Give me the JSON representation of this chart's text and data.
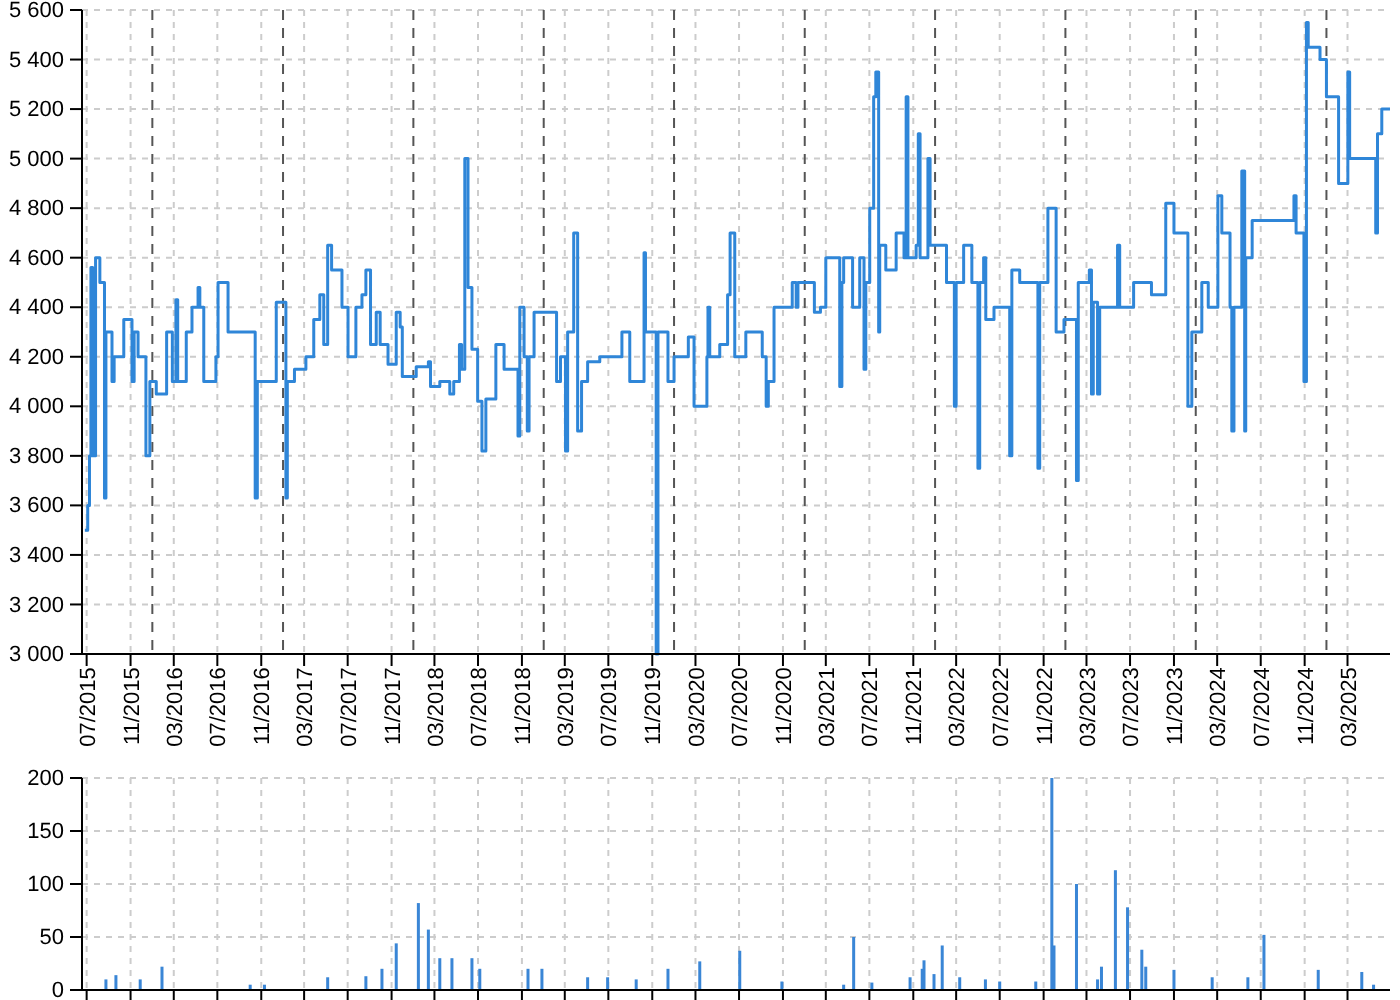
{
  "chart_data": [
    {
      "type": "step",
      "xlim": [
        "2015-06-18",
        "2025-06-28"
      ],
      "ylim": [
        3000,
        5600
      ],
      "xticks": [
        {
          "value": "2015-07-01",
          "label": "07/2015"
        },
        {
          "value": "2015-11-01",
          "label": "11/2015"
        },
        {
          "value": "2016-03-01",
          "label": "03/2016"
        },
        {
          "value": "2016-07-01",
          "label": "07/2016"
        },
        {
          "value": "2016-11-01",
          "label": "11/2016"
        },
        {
          "value": "2017-03-01",
          "label": "03/2017"
        },
        {
          "value": "2017-07-01",
          "label": "07/2017"
        },
        {
          "value": "2017-11-01",
          "label": "11/2017"
        },
        {
          "value": "2018-03-01",
          "label": "03/2018"
        },
        {
          "value": "2018-07-01",
          "label": "07/2018"
        },
        {
          "value": "2018-11-01",
          "label": "11/2018"
        },
        {
          "value": "2019-03-01",
          "label": "03/2019"
        },
        {
          "value": "2019-07-01",
          "label": "07/2019"
        },
        {
          "value": "2019-11-01",
          "label": "11/2019"
        },
        {
          "value": "2020-03-01",
          "label": "03/2020"
        },
        {
          "value": "2020-07-01",
          "label": "07/2020"
        },
        {
          "value": "2020-11-01",
          "label": "11/2020"
        },
        {
          "value": "2021-03-01",
          "label": "03/2021"
        },
        {
          "value": "2021-07-01",
          "label": "07/2021"
        },
        {
          "value": "2021-11-01",
          "label": "11/2021"
        },
        {
          "value": "2022-03-01",
          "label": "03/2022"
        },
        {
          "value": "2022-07-01",
          "label": "07/2022"
        },
        {
          "value": "2022-11-01",
          "label": "11/2022"
        },
        {
          "value": "2023-03-01",
          "label": "03/2023"
        },
        {
          "value": "2023-07-01",
          "label": "07/2023"
        },
        {
          "value": "2023-11-01",
          "label": "11/2023"
        },
        {
          "value": "2024-03-01",
          "label": "03/2024"
        },
        {
          "value": "2024-07-01",
          "label": "07/2024"
        },
        {
          "value": "2024-11-01",
          "label": "11/2024"
        },
        {
          "value": "2025-03-01",
          "label": "03/2025"
        }
      ],
      "yticks": [
        {
          "value": 3000,
          "label": "3 000"
        },
        {
          "value": 3200,
          "label": "3 200"
        },
        {
          "value": 3400,
          "label": "3 400"
        },
        {
          "value": 3600,
          "label": "3 600"
        },
        {
          "value": 3800,
          "label": "3 800"
        },
        {
          "value": 4000,
          "label": "4 000"
        },
        {
          "value": 4200,
          "label": "4 200"
        },
        {
          "value": 4400,
          "label": "4 400"
        },
        {
          "value": 4600,
          "label": "4 600"
        },
        {
          "value": 4800,
          "label": "4 800"
        },
        {
          "value": 5000,
          "label": "5 000"
        },
        {
          "value": 5200,
          "label": "5 200"
        },
        {
          "value": 5400,
          "label": "5 400"
        },
        {
          "value": 5600,
          "label": "5 600"
        }
      ],
      "grid": true,
      "ref_lines": [
        {
          "axis": "x",
          "value": "2016-01-01",
          "color": "#555555",
          "line_style": "dashed"
        },
        {
          "axis": "x",
          "value": "2017-01-01",
          "color": "#555555",
          "line_style": "dashed"
        },
        {
          "axis": "x",
          "value": "2018-01-01",
          "color": "#555555",
          "line_style": "dashed"
        },
        {
          "axis": "x",
          "value": "2019-01-01",
          "color": "#555555",
          "line_style": "dashed"
        },
        {
          "axis": "x",
          "value": "2020-01-01",
          "color": "#555555",
          "line_style": "dashed"
        },
        {
          "axis": "x",
          "value": "2021-01-01",
          "color": "#555555",
          "line_style": "dashed"
        },
        {
          "axis": "x",
          "value": "2022-01-01",
          "color": "#555555",
          "line_style": "dashed"
        },
        {
          "axis": "x",
          "value": "2023-01-01",
          "color": "#555555",
          "line_style": "dashed"
        },
        {
          "axis": "x",
          "value": "2024-01-01",
          "color": "#555555",
          "line_style": "dashed"
        },
        {
          "axis": "x",
          "value": "2025-01-01",
          "color": "#555555",
          "line_style": "dashed"
        }
      ],
      "series": [
        {
          "color": "#2f86d8",
          "x": [
            "2015-06-26",
            "2015-07-04",
            "2015-07-09",
            "2015-07-13",
            "2015-07-18",
            "2015-07-26",
            "2015-08-07",
            "2015-08-20",
            "2015-08-24",
            "2015-09-10",
            "2015-09-16",
            "2015-10-13",
            "2015-11-05",
            "2015-11-11",
            "2015-11-22",
            "2015-12-14",
            "2015-12-25",
            "2016-01-12",
            "2016-02-10",
            "2016-02-26",
            "2016-03-07",
            "2016-03-12",
            "2016-04-05",
            "2016-04-21",
            "2016-05-08",
            "2016-05-13",
            "2016-05-24",
            "2016-06-27",
            "2016-07-03",
            "2016-07-31",
            "2016-10-15",
            "2016-10-21",
            "2016-12-13",
            "2017-01-09",
            "2017-01-13",
            "2017-02-02",
            "2017-03-06",
            "2017-03-28",
            "2017-04-14",
            "2017-04-25",
            "2017-05-06",
            "2017-05-17",
            "2017-06-15",
            "2017-07-02",
            "2017-07-24",
            "2017-08-10",
            "2017-08-21",
            "2017-09-03",
            "2017-09-19",
            "2017-09-30",
            "2017-10-22",
            "2017-11-14",
            "2017-11-25",
            "2017-12-01",
            "2018-01-09",
            "2018-02-12",
            "2018-02-18",
            "2018-03-16",
            "2018-04-13",
            "2018-04-24",
            "2018-05-10",
            "2018-05-16",
            "2018-05-25",
            "2018-06-03",
            "2018-06-14",
            "2018-06-30",
            "2018-07-12",
            "2018-07-23",
            "2018-08-20",
            "2018-09-12",
            "2018-10-21",
            "2018-10-26",
            "2018-11-07",
            "2018-11-16",
            "2018-11-21",
            "2018-12-05",
            "2019-02-06",
            "2019-02-17",
            "2019-03-03",
            "2019-03-09",
            "2019-03-26",
            "2019-04-06",
            "2019-04-17",
            "2019-05-04",
            "2019-06-07",
            "2019-08-08",
            "2019-08-30",
            "2019-10-09",
            "2019-10-13",
            "2019-11-12",
            "2019-11-17",
            "2019-12-15",
            "2020-01-01",
            "2020-02-10",
            "2020-02-26",
            "2020-04-02",
            "2020-04-05",
            "2020-04-10",
            "2020-05-08",
            "2020-05-30",
            "2020-06-06",
            "2020-06-19",
            "2020-07-20",
            "2020-09-04",
            "2020-09-15",
            "2020-09-21",
            "2020-10-07",
            "2020-11-27",
            "2020-12-08",
            "2020-12-13",
            "2021-01-28",
            "2021-02-14",
            "2021-03-01",
            "2021-04-09",
            "2021-04-15",
            "2021-04-20",
            "2021-05-15",
            "2021-06-04",
            "2021-06-16",
            "2021-06-21",
            "2021-07-02",
            "2021-07-13",
            "2021-07-19",
            "2021-07-27",
            "2021-07-30",
            "2021-08-16",
            "2021-09-14",
            "2021-10-06",
            "2021-10-12",
            "2021-10-17",
            "2021-11-09",
            "2021-11-15",
            "2021-11-20",
            "2021-12-12",
            "2021-12-18",
            "2022-02-02",
            "2022-02-24",
            "2022-03-01",
            "2022-03-22",
            "2022-04-14",
            "2022-05-01",
            "2022-05-06",
            "2022-05-17",
            "2022-05-23",
            "2022-06-15",
            "2022-07-29",
            "2022-08-04",
            "2022-08-26",
            "2022-10-16",
            "2022-10-21",
            "2022-11-13",
            "2022-12-06",
            "2022-12-28",
            "2023-02-01",
            "2023-02-06",
            "2023-03-09",
            "2023-03-15",
            "2023-03-20",
            "2023-04-01",
            "2023-04-07",
            "2023-05-27",
            "2023-06-02",
            "2023-07-11",
            "2023-08-30",
            "2023-10-09",
            "2023-11-01",
            "2023-12-10",
            "2023-12-21",
            "2024-01-18",
            "2024-02-05",
            "2024-03-03",
            "2024-03-14",
            "2024-04-06",
            "2024-04-11",
            "2024-04-17",
            "2024-05-09",
            "2024-05-17",
            "2024-05-20",
            "2024-06-07",
            "2024-10-02",
            "2024-10-08",
            "2024-10-30",
            "2024-11-06",
            "2024-11-11",
            "2024-12-14",
            "2025-01-01",
            "2025-02-04",
            "2025-03-02",
            "2025-03-07",
            "2025-05-19",
            "2025-05-24",
            "2025-06-05",
            "2025-06-28"
          ],
          "values": [
            3500,
            3600,
            3800,
            4560,
            3800,
            4600,
            4500,
            3630,
            4300,
            4100,
            4200,
            4350,
            4100,
            4300,
            4200,
            3800,
            4100,
            4050,
            4300,
            4100,
            4430,
            4100,
            4300,
            4400,
            4480,
            4400,
            4100,
            4200,
            4500,
            4300,
            3630,
            4100,
            4420,
            3630,
            4100,
            4150,
            4200,
            4350,
            4450,
            4250,
            4650,
            4550,
            4400,
            4200,
            4400,
            4450,
            4550,
            4250,
            4380,
            4250,
            4170,
            4380,
            4320,
            4120,
            4160,
            4180,
            4080,
            4100,
            4050,
            4100,
            4250,
            4150,
            5000,
            4480,
            4230,
            4020,
            3820,
            4030,
            4250,
            4150,
            3880,
            4400,
            4200,
            3900,
            4200,
            4380,
            4100,
            4200,
            3820,
            4300,
            4700,
            3900,
            4100,
            4180,
            4200,
            4300,
            4100,
            4620,
            4300,
            3000,
            4300,
            4100,
            4200,
            4280,
            4000,
            4200,
            4400,
            4200,
            4250,
            4450,
            4700,
            4200,
            4300,
            4200,
            4000,
            4100,
            4400,
            4500,
            4400,
            4500,
            4380,
            4400,
            4600,
            4080,
            4500,
            4600,
            4400,
            4600,
            4150,
            4500,
            4800,
            5250,
            5350,
            4300,
            4650,
            4550,
            4700,
            4600,
            5250,
            4600,
            4650,
            5100,
            4600,
            5000,
            4650,
            4500,
            4000,
            4500,
            4650,
            4500,
            3750,
            4500,
            4600,
            4350,
            4400,
            3800,
            4550,
            4500,
            3750,
            4500,
            4800,
            4300,
            4350,
            3700,
            4500,
            4550,
            4050,
            4420,
            4050,
            4400,
            4650,
            4400,
            4500,
            4450,
            4820,
            4700,
            4000,
            4300,
            4500,
            4400,
            4850,
            4700,
            4400,
            3900,
            4400,
            4950,
            3900,
            4600,
            4750,
            4850,
            4700,
            4100,
            5550,
            5450,
            5400,
            5250,
            4900,
            5350,
            5000,
            4700,
            5100,
            5200,
            5200
          ]
        }
      ]
    },
    {
      "type": "bar",
      "xlim": [
        "2015-06-18",
        "2025-06-28"
      ],
      "ylim": [
        0,
        200
      ],
      "yticks": [
        0,
        50,
        100,
        150,
        200
      ],
      "tick_labels": "y",
      "grid": true,
      "xticks": [
        {
          "value": "2015-07-01",
          "label": null
        },
        {
          "value": "2015-11-01",
          "label": null
        },
        {
          "value": "2016-03-01",
          "label": null
        },
        {
          "value": "2016-07-01",
          "label": null
        },
        {
          "value": "2016-11-01",
          "label": null
        },
        {
          "value": "2017-03-01",
          "label": null
        },
        {
          "value": "2017-07-01",
          "label": null
        },
        {
          "value": "2017-11-01",
          "label": null
        },
        {
          "value": "2018-03-01",
          "label": null
        },
        {
          "value": "2018-07-01",
          "label": null
        },
        {
          "value": "2018-11-01",
          "label": null
        },
        {
          "value": "2019-03-01",
          "label": null
        },
        {
          "value": "2019-07-01",
          "label": null
        },
        {
          "value": "2019-11-01",
          "label": null
        },
        {
          "value": "2020-03-01",
          "label": null
        },
        {
          "value": "2020-07-01",
          "label": null
        },
        {
          "value": "2020-11-01",
          "label": null
        },
        {
          "value": "2021-03-01",
          "label": null
        },
        {
          "value": "2021-07-01",
          "label": null
        },
        {
          "value": "2021-11-01",
          "label": null
        },
        {
          "value": "2022-03-01",
          "label": null
        },
        {
          "value": "2022-07-01",
          "label": null
        },
        {
          "value": "2022-11-01",
          "label": null
        },
        {
          "value": "2023-03-01",
          "label": null
        },
        {
          "value": "2023-07-01",
          "label": null
        },
        {
          "value": "2023-11-01",
          "label": null
        },
        {
          "value": "2024-03-01",
          "label": null
        },
        {
          "value": "2024-07-01",
          "label": null
        },
        {
          "value": "2024-11-01",
          "label": null
        },
        {
          "value": "2025-03-01",
          "label": null
        }
      ],
      "series": [
        {
          "color": "#3a86d6",
          "x": [
            "2015-08-24",
            "2015-09-21",
            "2015-11-28",
            "2016-01-28",
            "2016-10-01",
            "2016-11-10",
            "2017-05-06",
            "2017-08-21",
            "2017-10-05",
            "2017-11-14",
            "2018-01-15",
            "2018-02-12",
            "2018-03-16",
            "2018-04-19",
            "2018-06-14",
            "2018-07-06",
            "2018-11-18",
            "2018-12-27",
            "2019-05-04",
            "2019-06-29",
            "2019-09-17",
            "2019-12-15",
            "2020-03-13",
            "2020-07-03",
            "2020-10-29",
            "2021-04-20",
            "2021-05-18",
            "2021-07-08",
            "2021-10-23",
            "2021-11-26",
            "2021-12-01",
            "2021-12-29",
            "2022-01-21",
            "2022-03-11",
            "2022-05-22",
            "2022-07-01",
            "2022-10-10",
            "2022-11-24",
            "2022-11-30",
            "2023-02-01",
            "2023-04-01",
            "2023-04-12",
            "2023-05-21",
            "2023-06-24",
            "2023-08-03",
            "2023-08-14",
            "2023-11-01",
            "2024-02-16",
            "2024-05-26",
            "2024-07-10",
            "2024-12-09",
            "2025-04-10",
            "2025-05-13"
          ],
          "values": [
            10,
            14,
            10,
            22,
            5,
            5,
            12,
            13,
            20,
            44,
            82,
            57,
            30,
            30,
            30,
            20,
            20,
            20,
            12,
            12,
            10,
            20,
            27,
            37,
            8,
            5,
            50,
            7,
            12,
            20,
            28,
            15,
            42,
            12,
            10,
            8,
            8,
            200,
            42,
            100,
            10,
            22,
            113,
            78,
            38,
            22,
            19,
            12,
            12,
            52,
            19,
            17,
            5
          ]
        }
      ]
    }
  ]
}
